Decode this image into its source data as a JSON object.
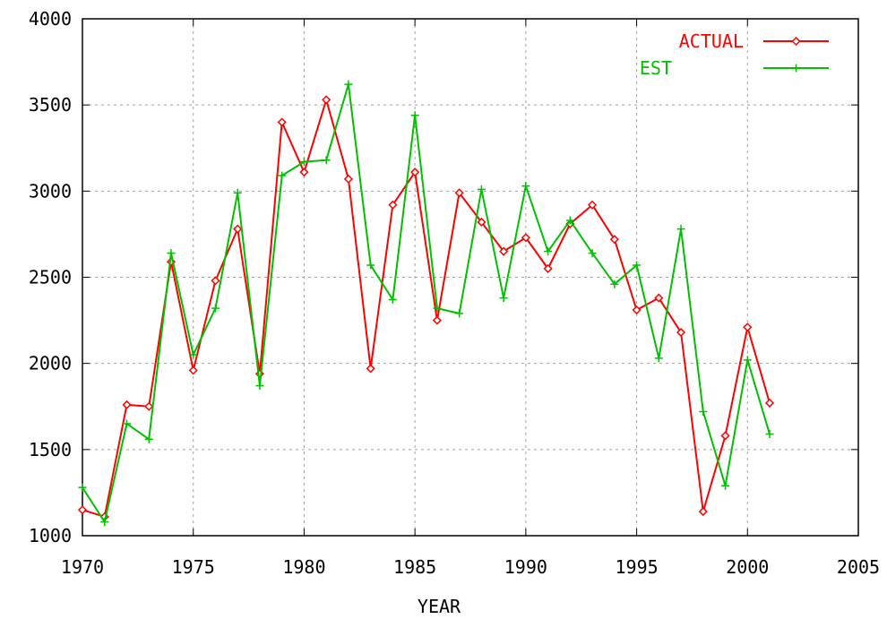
{
  "chart_data": {
    "type": "line",
    "title": "",
    "xlabel": "YEAR",
    "ylabel": "",
    "xlim": [
      1970,
      2005
    ],
    "ylim": [
      1000,
      4000
    ],
    "xticks": [
      "1970",
      "1975",
      "1980",
      "1985",
      "1990",
      "1995",
      "2000",
      "2005"
    ],
    "yticks": [
      "1000",
      "1500",
      "2000",
      "2500",
      "3000",
      "3500",
      "4000"
    ],
    "grid": true,
    "legend_position": "top-right",
    "series": [
      {
        "name": "ACTUAL",
        "color": "#ff0000",
        "marker": "diamond",
        "x": [
          1970,
          1971,
          1972,
          1973,
          1974,
          1975,
          1976,
          1977,
          1978,
          1979,
          1980,
          1981,
          1982,
          1983,
          1984,
          1985,
          1986,
          1987,
          1988,
          1989,
          1990,
          1991,
          1992,
          1993,
          1994,
          1995,
          1996,
          1997,
          1998,
          1999,
          2000,
          2001
        ],
        "y": [
          1150,
          1110,
          1760,
          1750,
          2590,
          1960,
          2480,
          2780,
          1940,
          3400,
          3110,
          3530,
          3070,
          1970,
          2920,
          3110,
          2250,
          2990,
          2820,
          2650,
          2730,
          2550,
          2810,
          2920,
          2720,
          2310,
          2380,
          2180,
          1140,
          1580,
          2210,
          1770
        ]
      },
      {
        "name": "EST",
        "color": "#00c000",
        "marker": "plus",
        "x": [
          1970,
          1971,
          1972,
          1973,
          1974,
          1975,
          1976,
          1977,
          1978,
          1979,
          1980,
          1981,
          1982,
          1983,
          1984,
          1985,
          1986,
          1987,
          1988,
          1989,
          1990,
          1991,
          1992,
          1993,
          1994,
          1995,
          1996,
          1997,
          1998,
          1999,
          2000,
          2001
        ],
        "y": [
          1280,
          1080,
          1650,
          1560,
          2640,
          2050,
          2320,
          2990,
          1870,
          3090,
          3170,
          3180,
          3620,
          2570,
          2370,
          3440,
          2320,
          2290,
          3010,
          2380,
          3030,
          2650,
          2830,
          2640,
          2460,
          2570,
          2030,
          2780,
          1720,
          1290,
          2020,
          1590
        ]
      }
    ]
  }
}
